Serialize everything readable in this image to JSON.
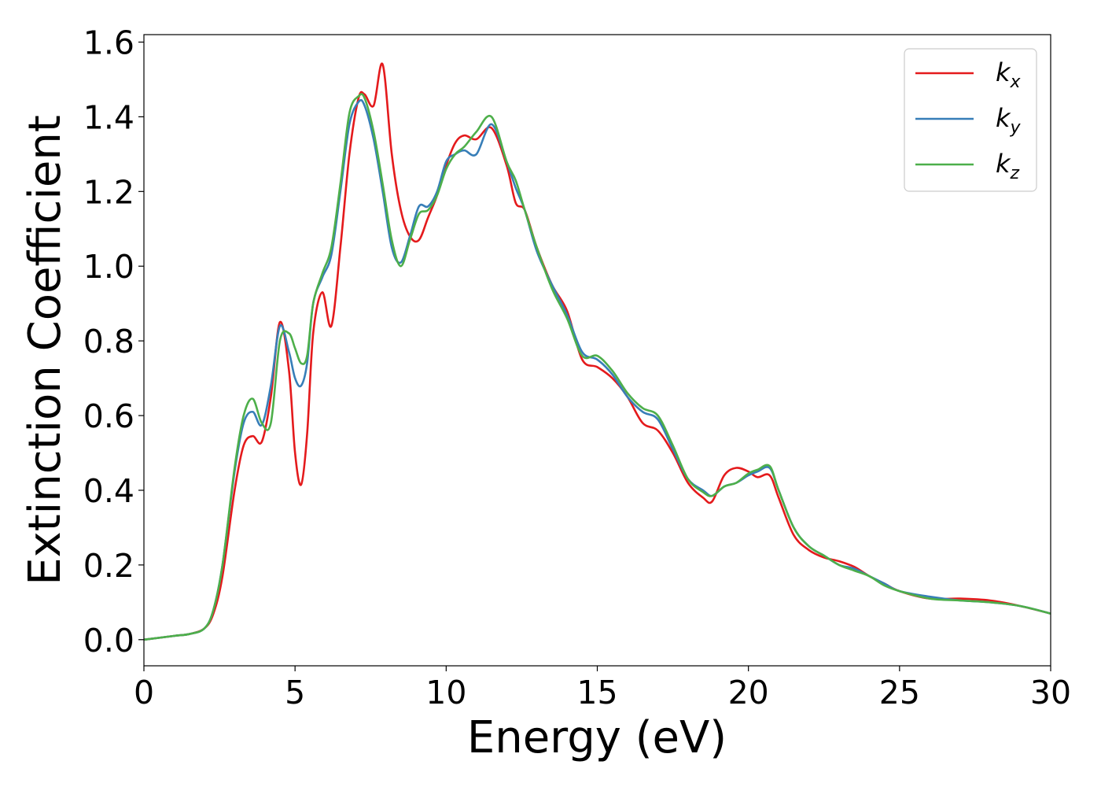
{
  "chart_data": {
    "type": "line",
    "xlabel": "Energy (eV)",
    "ylabel": "Extinction Coefficient",
    "xlim": [
      0,
      30
    ],
    "ylim": [
      -0.07,
      1.62
    ],
    "xticks": [
      0,
      5,
      10,
      15,
      20,
      25,
      30
    ],
    "xtick_labels": [
      "0",
      "5",
      "10",
      "15",
      "20",
      "25",
      "30"
    ],
    "yticks": [
      0.0,
      0.2,
      0.4,
      0.6,
      0.8,
      1.0,
      1.2,
      1.4,
      1.6
    ],
    "ytick_labels": [
      "0.0",
      "0.2",
      "0.4",
      "0.6",
      "0.8",
      "1.0",
      "1.2",
      "1.4",
      "1.6"
    ],
    "grid": false,
    "legend_position": "top-right",
    "series": [
      {
        "name": "k_x",
        "legend_base": "k",
        "legend_sub": "x",
        "color": "#e41a1c",
        "x": [
          0,
          1,
          1.5,
          2,
          2.3,
          2.6,
          3,
          3.3,
          3.6,
          3.9,
          4.2,
          4.5,
          4.8,
          5.0,
          5.2,
          5.4,
          5.6,
          5.9,
          6.2,
          6.5,
          6.8,
          7.1,
          7.3,
          7.6,
          7.9,
          8.2,
          8.5,
          8.8,
          9.1,
          9.4,
          9.7,
          10.0,
          10.3,
          10.6,
          11.0,
          11.5,
          12.0,
          12.3,
          12.6,
          13.0,
          13.5,
          14.0,
          14.5,
          15.0,
          15.5,
          16.0,
          16.5,
          17.0,
          17.5,
          18.0,
          18.5,
          18.8,
          19.2,
          19.6,
          20.0,
          20.3,
          20.7,
          21.0,
          21.5,
          22.0,
          22.5,
          23.0,
          23.5,
          24.0,
          24.5,
          25,
          26,
          27,
          28,
          29,
          30
        ],
        "y": [
          0.0,
          0.01,
          0.015,
          0.03,
          0.07,
          0.17,
          0.4,
          0.52,
          0.545,
          0.53,
          0.65,
          0.85,
          0.72,
          0.5,
          0.415,
          0.55,
          0.82,
          0.93,
          0.84,
          1.05,
          1.3,
          1.45,
          1.46,
          1.43,
          1.54,
          1.3,
          1.15,
          1.08,
          1.07,
          1.13,
          1.19,
          1.27,
          1.33,
          1.35,
          1.34,
          1.37,
          1.27,
          1.17,
          1.15,
          1.05,
          0.95,
          0.88,
          0.75,
          0.73,
          0.7,
          0.65,
          0.58,
          0.56,
          0.5,
          0.42,
          0.38,
          0.37,
          0.44,
          0.46,
          0.45,
          0.435,
          0.44,
          0.38,
          0.28,
          0.24,
          0.22,
          0.21,
          0.195,
          0.17,
          0.15,
          0.13,
          0.11,
          0.11,
          0.105,
          0.09,
          0.07
        ]
      },
      {
        "name": "k_y",
        "legend_base": "k",
        "legend_sub": "y",
        "color": "#377eb8",
        "x": [
          0,
          1,
          1.5,
          2,
          2.3,
          2.6,
          3,
          3.3,
          3.6,
          3.9,
          4.2,
          4.5,
          4.8,
          5.0,
          5.2,
          5.4,
          5.6,
          5.9,
          6.2,
          6.5,
          6.8,
          7.1,
          7.3,
          7.6,
          7.9,
          8.2,
          8.5,
          8.8,
          9.1,
          9.4,
          9.7,
          10.0,
          10.3,
          10.6,
          11.0,
          11.5,
          12.0,
          12.3,
          12.6,
          13.0,
          13.5,
          14.0,
          14.5,
          15.0,
          15.5,
          16.0,
          16.5,
          17.0,
          17.5,
          18.0,
          18.5,
          18.8,
          19.2,
          19.6,
          20.0,
          20.3,
          20.7,
          21.0,
          21.5,
          22.0,
          22.5,
          23.0,
          23.5,
          24.0,
          24.5,
          25,
          26,
          27,
          28,
          29,
          30
        ],
        "y": [
          0.0,
          0.01,
          0.015,
          0.03,
          0.08,
          0.2,
          0.45,
          0.58,
          0.61,
          0.575,
          0.68,
          0.84,
          0.77,
          0.7,
          0.68,
          0.74,
          0.9,
          0.97,
          1.03,
          1.2,
          1.38,
          1.44,
          1.43,
          1.34,
          1.2,
          1.05,
          1.01,
          1.08,
          1.16,
          1.16,
          1.2,
          1.28,
          1.3,
          1.31,
          1.3,
          1.38,
          1.28,
          1.21,
          1.15,
          1.04,
          0.95,
          0.87,
          0.77,
          0.75,
          0.71,
          0.65,
          0.61,
          0.59,
          0.51,
          0.43,
          0.4,
          0.385,
          0.41,
          0.42,
          0.44,
          0.45,
          0.46,
          0.4,
          0.3,
          0.25,
          0.225,
          0.2,
          0.19,
          0.17,
          0.15,
          0.13,
          0.115,
          0.105,
          0.1,
          0.09,
          0.07
        ]
      },
      {
        "name": "k_z",
        "legend_base": "k",
        "legend_sub": "z",
        "color": "#4daf4a",
        "x": [
          0,
          1,
          1.5,
          2,
          2.3,
          2.6,
          3,
          3.3,
          3.6,
          3.9,
          4.2,
          4.5,
          4.8,
          5.0,
          5.2,
          5.4,
          5.6,
          5.9,
          6.2,
          6.5,
          6.8,
          7.1,
          7.3,
          7.6,
          7.9,
          8.2,
          8.5,
          8.8,
          9.1,
          9.4,
          9.7,
          10.0,
          10.3,
          10.6,
          11.0,
          11.5,
          12.0,
          12.3,
          12.6,
          13.0,
          13.5,
          14.0,
          14.5,
          15.0,
          15.5,
          16.0,
          16.5,
          17.0,
          17.5,
          18.0,
          18.5,
          18.8,
          19.2,
          19.6,
          20.0,
          20.3,
          20.7,
          21.0,
          21.5,
          22.0,
          22.5,
          23.0,
          23.5,
          24.0,
          24.5,
          25,
          26,
          27,
          28,
          29,
          30
        ],
        "y": [
          0.0,
          0.01,
          0.015,
          0.03,
          0.08,
          0.2,
          0.46,
          0.6,
          0.645,
          0.58,
          0.58,
          0.8,
          0.82,
          0.78,
          0.74,
          0.76,
          0.9,
          0.98,
          1.05,
          1.22,
          1.41,
          1.455,
          1.45,
          1.36,
          1.22,
          1.07,
          1.0,
          1.07,
          1.14,
          1.15,
          1.19,
          1.26,
          1.3,
          1.32,
          1.36,
          1.4,
          1.28,
          1.23,
          1.15,
          1.05,
          0.94,
          0.86,
          0.76,
          0.76,
          0.72,
          0.66,
          0.62,
          0.6,
          0.52,
          0.43,
          0.395,
          0.385,
          0.41,
          0.42,
          0.445,
          0.455,
          0.465,
          0.4,
          0.3,
          0.25,
          0.225,
          0.2,
          0.185,
          0.17,
          0.145,
          0.13,
          0.11,
          0.105,
          0.1,
          0.09,
          0.07
        ]
      }
    ]
  }
}
